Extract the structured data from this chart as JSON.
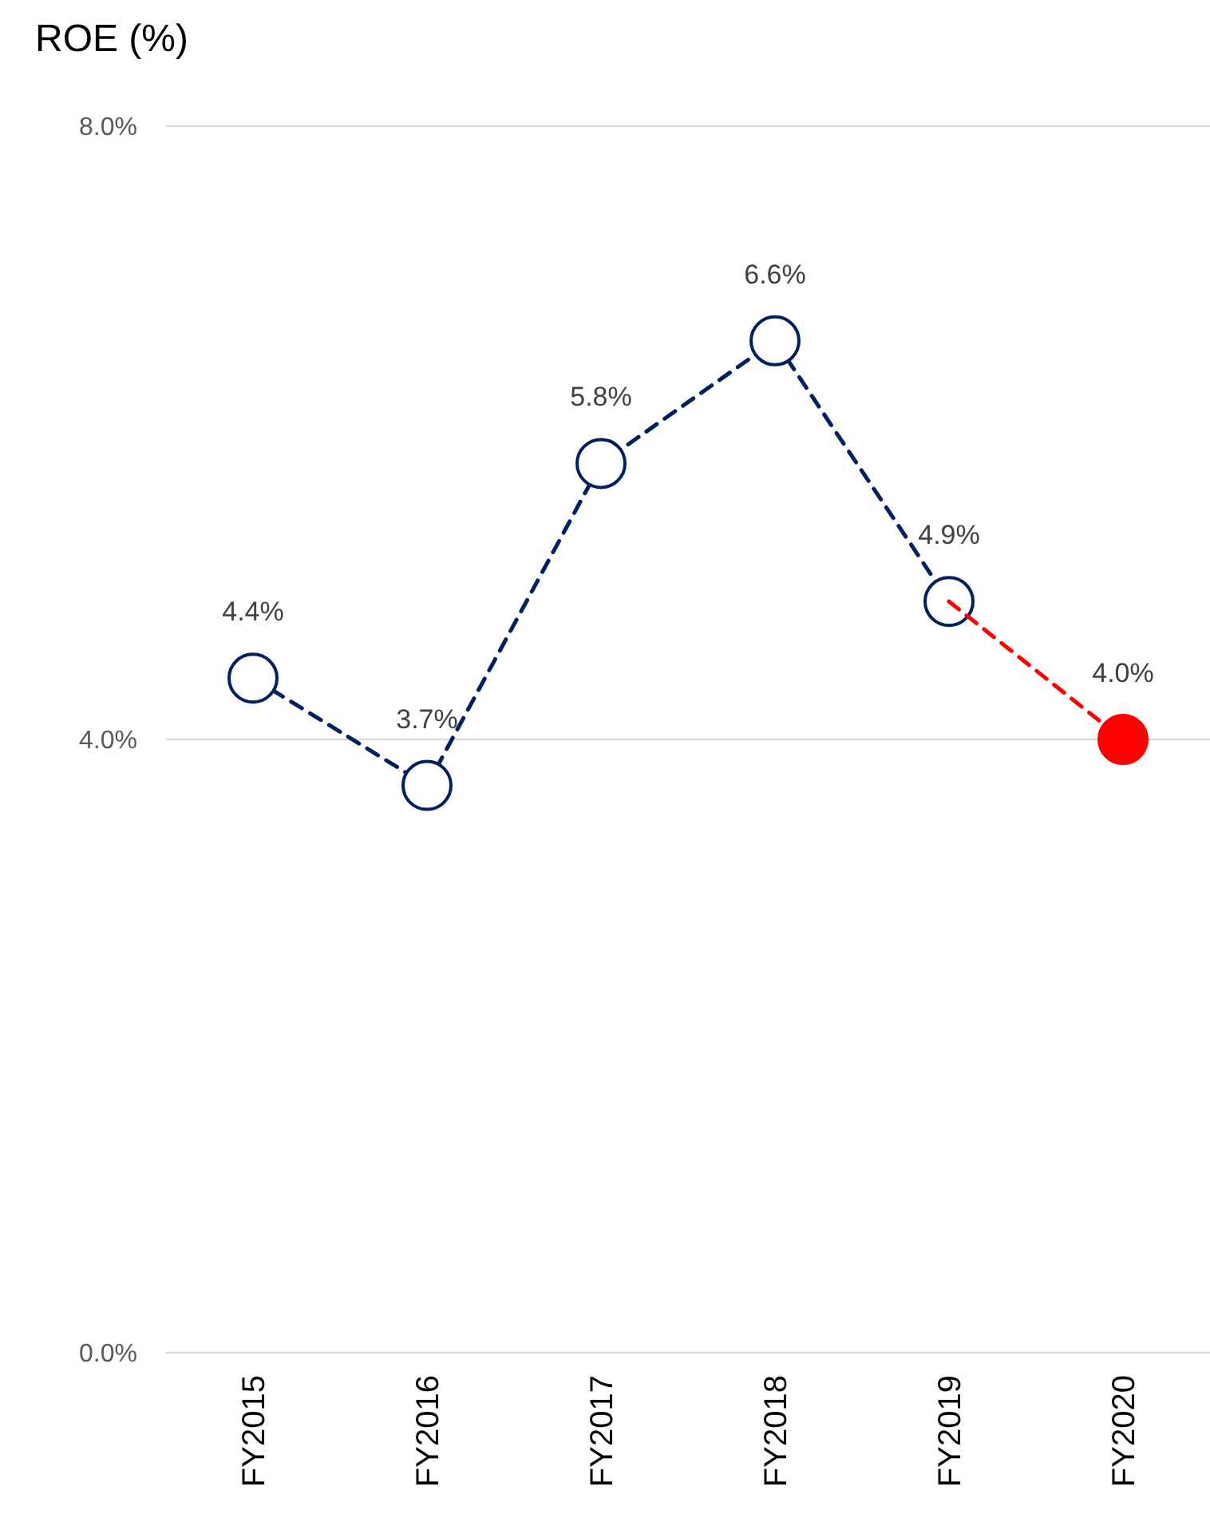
{
  "chart_data": {
    "type": "line",
    "ylabel": "ROE (%)",
    "categories": [
      "FY2015",
      "FY2016",
      "FY2017",
      "FY2018",
      "FY2019",
      "FY2020"
    ],
    "series": [
      {
        "color": "#002060",
        "values": [
          4.4,
          3.7,
          5.8,
          6.6,
          4.9,
          null
        ],
        "value_labels": [
          "4.4%",
          "3.7%",
          "5.8%",
          "6.6%",
          "4.9%",
          null
        ]
      },
      {
        "color": "#ff0000",
        "values": [
          null,
          null,
          null,
          null,
          4.9,
          4.0
        ],
        "value_labels": [
          null,
          null,
          null,
          null,
          null,
          "4.0%"
        ]
      }
    ],
    "ylim": [
      0,
      8
    ],
    "yticks": [
      {
        "value": 0,
        "label": "0.0%"
      },
      {
        "value": 4,
        "label": "4.0%"
      },
      {
        "value": 8,
        "label": "8.0%"
      }
    ],
    "grid": "y",
    "marker": "circle",
    "line_style": "dashed"
  }
}
